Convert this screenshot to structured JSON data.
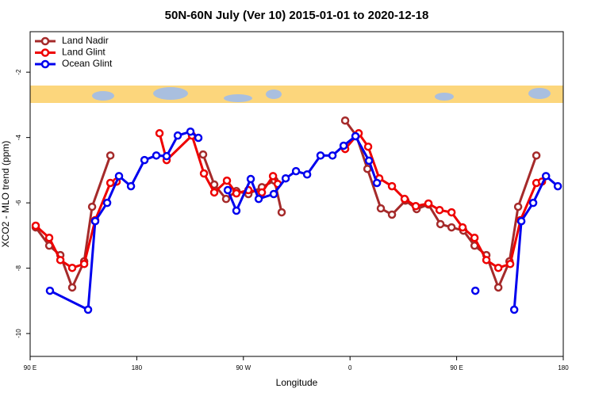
{
  "chart_data": {
    "type": "line",
    "title": "50N-60N July (Ver 10)   2015-01-01 to 2020-12-18",
    "x_label": "Longitude",
    "y_label": "XCO2 - MLO trend (ppm)",
    "xlim": [
      90,
      540
    ],
    "ylim": [
      -10.7,
      -0.76
    ],
    "xticks": [
      {
        "value": 90,
        "label": "90 E"
      },
      180,
      {
        "value": 270,
        "label": "90 W"
      },
      {
        "value": 360,
        "label": "0"
      },
      {
        "value": 450,
        "label": "90 E"
      },
      {
        "value": 540,
        "label": "180"
      }
    ],
    "yticks": [
      -2,
      -4,
      -6,
      -8,
      -10
    ],
    "legend": "top-left",
    "series": [
      {
        "name": "Land Nadir",
        "color": "#a52a2a",
        "x": [
          94.7,
          106.1,
          115.5,
          125.5,
          135.6,
          142.3,
          157.7,
          null,
          236.0,
          245.4,
          255.4,
          264.1,
          274.2,
          285.6,
          296.3,
          302.3,
          null,
          355.9,
          365.3,
          374.7,
          386.0,
          395.4,
          406.8,
          416.2,
          426.2,
          436.3,
          445.7,
          455.7,
          465.1,
          475.1,
          485.2,
          494.6,
          501.9,
          517.3
        ],
        "values": [
          -6.75,
          -7.31,
          -7.6,
          -8.59,
          -7.79,
          -6.12,
          -4.55,
          null,
          -4.52,
          -5.44,
          -5.88,
          -5.64,
          -5.73,
          -5.52,
          -5.32,
          -6.29,
          null,
          -3.48,
          -3.94,
          -4.96,
          -6.17,
          -6.36,
          -5.93,
          -6.19,
          -6.05,
          -6.65,
          -6.75,
          -6.85,
          -7.31,
          -7.6,
          -8.59,
          -7.79,
          -6.12,
          -4.55
        ]
      },
      {
        "name": "Land Glint",
        "color": "#ee0000",
        "x": [
          94.7,
          106.1,
          115.5,
          125.5,
          135.6,
          144.9,
          157.7,
          163.0,
          null,
          199.2,
          205.2,
          226.6,
          236.7,
          245.4,
          256.1,
          264.1,
          274.2,
          285.6,
          295.0,
          299.0,
          null,
          355.9,
          367.3,
          375.3,
          384.7,
          395.4,
          406.1,
          415.5,
          426.2,
          435.6,
          445.7,
          455.0,
          465.1,
          475.1,
          485.2,
          495.2,
          503.9,
          517.3,
          522.0
        ],
        "values": [
          -6.7,
          -7.07,
          -7.75,
          -7.99,
          -7.87,
          -6.53,
          -5.39,
          -5.35,
          null,
          -3.87,
          -4.69,
          -3.94,
          -5.1,
          -5.68,
          -5.32,
          -5.71,
          -5.61,
          -5.68,
          -5.18,
          -5.42,
          null,
          -4.35,
          -3.87,
          -4.28,
          -5.25,
          -5.49,
          -5.88,
          -6.1,
          -6.02,
          -6.22,
          -6.29,
          -6.75,
          -7.07,
          -7.75,
          -7.99,
          -7.87,
          -6.53,
          -5.39,
          -5.35
        ]
      },
      {
        "name": "Ocean Glint",
        "color": "#0000ee",
        "x": [
          106.7,
          138.9,
          144.9,
          155.0,
          165.0,
          175.1,
          186.5,
          196.5,
          205.2,
          214.6,
          225.3,
          232.0,
          null,
          256.8,
          264.1,
          276.2,
          282.9,
          295.6,
          305.7,
          314.4,
          323.8,
          335.1,
          345.2,
          354.6,
          364.6,
          376.0,
          382.7,
          null,
          465.8,
          null,
          498.6,
          504.6,
          514.6,
          525.4,
          535.4
        ],
        "values": [
          -8.69,
          -9.27,
          -6.56,
          -6.0,
          -5.18,
          -5.49,
          -4.69,
          -4.55,
          -4.57,
          -3.94,
          -3.82,
          -4.01,
          null,
          -5.61,
          -6.24,
          -5.27,
          -5.88,
          -5.73,
          -5.25,
          -5.03,
          -5.13,
          -4.55,
          -4.55,
          -4.25,
          -3.96,
          -4.71,
          -5.39,
          null,
          -8.69,
          null,
          -9.27,
          -6.56,
          -6.0,
          -5.18,
          -5.49
        ]
      }
    ]
  }
}
